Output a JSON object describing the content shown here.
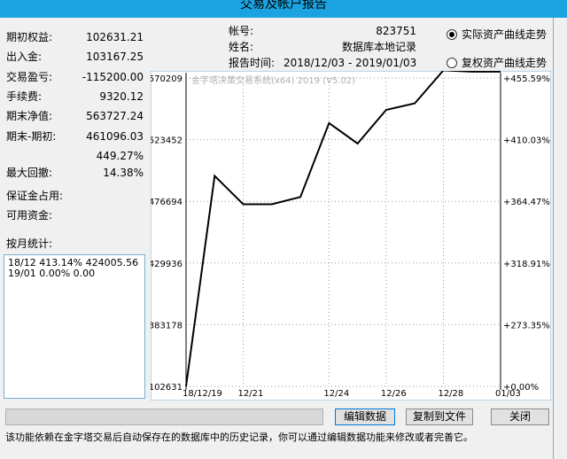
{
  "window": {
    "title": "交易及帐户报告"
  },
  "stats": [
    {
      "label": "期初权益:",
      "value": "102631.21"
    },
    {
      "label": "出入金:",
      "value": "103167.25"
    },
    {
      "label": "交易盈亏:",
      "value": "-115200.00"
    },
    {
      "label": "手续费:",
      "value": "9320.12"
    },
    {
      "label": "期末净值:",
      "value": "563727.24"
    },
    {
      "label": "期末-期初:",
      "value": "461096.03"
    },
    {
      "label": "",
      "value": "449.27%"
    },
    {
      "label": "最大回撤:",
      "value": "14.38%"
    },
    {
      "label": "保证金占用:",
      "value": ""
    },
    {
      "label": "可用资金:",
      "value": ""
    }
  ],
  "monthly": {
    "label": "按月统计:",
    "rows": [
      "18/12  413.14% 424005.56",
      "19/01  0.00% 0.00"
    ]
  },
  "account": {
    "account_label": "帐号:",
    "account_value": "823751",
    "name_label": "姓名:",
    "name_value": "数据库本地记录",
    "time_label": "报告时间:",
    "time_value": "2018/12/03 - 2019/01/03"
  },
  "radios": {
    "actual_label": "实际资产曲线走势",
    "actual_selected": true,
    "restored_label": "复权资产曲线走势",
    "restored_selected": false
  },
  "chart_data": {
    "type": "line",
    "watermark": "金字塔决策交易系统(x64) 2019 (V5.02)",
    "x": [
      "18/12/19",
      "",
      "12/21",
      "",
      "",
      "12/24",
      "",
      "12/26",
      "",
      "12/28",
      "",
      "01/03"
    ],
    "xticks": [
      "18/12/19",
      "12/21",
      "12/24",
      "12/26",
      "12/28",
      "01/03"
    ],
    "y": [
      102631,
      496000,
      474500,
      474500,
      480000,
      536000,
      520500,
      546000,
      551000,
      576000,
      575000,
      575000
    ],
    "yticks_left": [
      "570209",
      "523452",
      "476694",
      "429936",
      "383178",
      "102631"
    ],
    "yticks_right": [
      "+455.59%",
      "+410.03%",
      "+364.47%",
      "+318.91%",
      "+273.35%",
      "+0.00%"
    ],
    "ylim": [
      102631,
      570209
    ],
    "grid": true,
    "line_color": "#000000"
  },
  "buttons": {
    "edit": "编辑数据",
    "copy": "复制到文件",
    "close": "关闭"
  },
  "footer": "该功能依赖在金字塔交易后自动保存在的数据库中的历史记录，你可以通过编辑数据功能来修改或者完善它。"
}
